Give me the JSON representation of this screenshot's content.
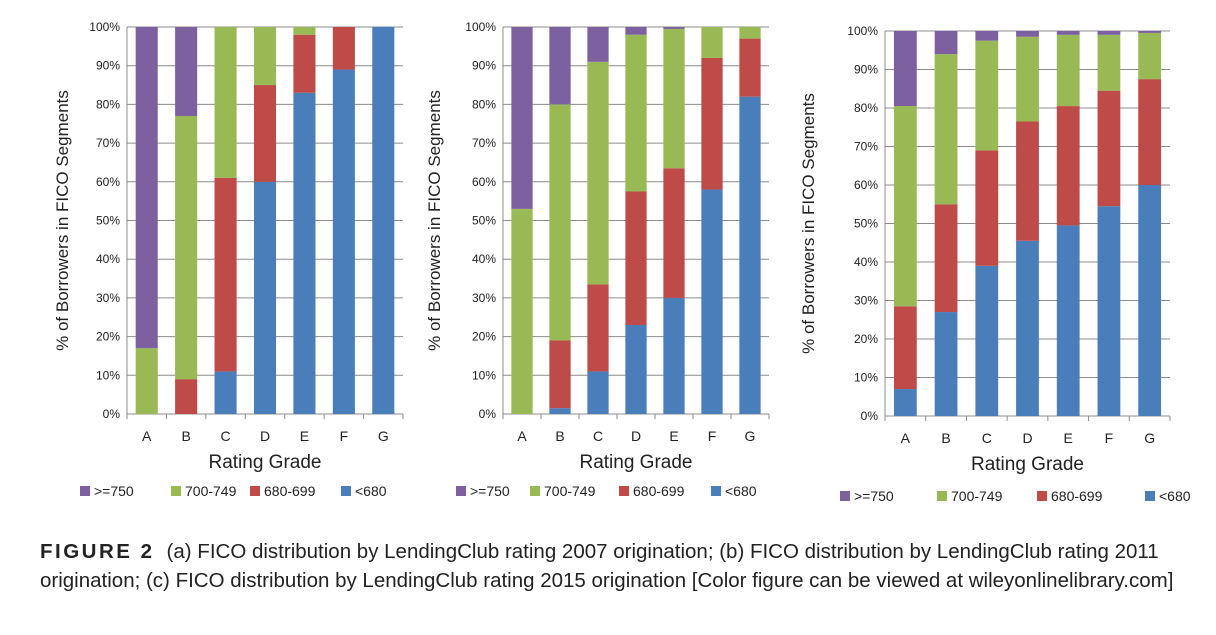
{
  "chart_data": [
    {
      "type": "bar",
      "stacked": true,
      "categories": [
        "A",
        "B",
        "C",
        "D",
        "E",
        "F",
        "G"
      ],
      "series": [
        {
          "name": "<680",
          "color": "#4a7ebb",
          "values": [
            0,
            0,
            11,
            60,
            83,
            89,
            100
          ]
        },
        {
          "name": "680-699",
          "color": "#be4b48",
          "values": [
            0,
            9,
            50,
            25,
            15,
            11,
            0
          ]
        },
        {
          "name": "700-749",
          "color": "#98b954",
          "values": [
            17,
            68,
            39,
            15,
            2,
            0,
            0
          ]
        },
        {
          "name": ">=750",
          "color": "#7d60a0",
          "values": [
            83,
            23,
            0,
            0,
            0,
            0,
            0
          ]
        }
      ],
      "xlabel": "Rating Grade",
      "ylabel": "% of Borrowers in FICO Segments",
      "ylim": [
        0,
        100
      ],
      "yticks": [
        "0%",
        "10%",
        "20%",
        "30%",
        "40%",
        "50%",
        "60%",
        "70%",
        "80%",
        "90%",
        "100%"
      ],
      "grid": true,
      "legend_position": "bottom"
    },
    {
      "type": "bar",
      "stacked": true,
      "categories": [
        "A",
        "B",
        "C",
        "D",
        "E",
        "F",
        "G"
      ],
      "series": [
        {
          "name": "<680",
          "color": "#4a7ebb",
          "values": [
            0,
            1.5,
            11,
            23,
            30,
            58,
            82
          ]
        },
        {
          "name": "680-699",
          "color": "#be4b48",
          "values": [
            0,
            17.5,
            22.5,
            34.5,
            33.5,
            34,
            15
          ]
        },
        {
          "name": "700-749",
          "color": "#98b954",
          "values": [
            53,
            61,
            57.5,
            40.5,
            36,
            8,
            3
          ]
        },
        {
          "name": ">=750",
          "color": "#7d60a0",
          "values": [
            47,
            20,
            9,
            2,
            0.5,
            0,
            0
          ]
        }
      ],
      "xlabel": "Rating Grade",
      "ylabel": "% of Borrowers in FICO Segments",
      "ylim": [
        0,
        100
      ],
      "yticks": [
        "0%",
        "10%",
        "20%",
        "30%",
        "40%",
        "50%",
        "60%",
        "70%",
        "80%",
        "90%",
        "100%"
      ],
      "grid": true,
      "legend_position": "bottom"
    },
    {
      "type": "bar",
      "stacked": true,
      "categories": [
        "A",
        "B",
        "C",
        "D",
        "E",
        "F",
        "G"
      ],
      "series": [
        {
          "name": "<680",
          "color": "#4a7ebb",
          "values": [
            7,
            27,
            39,
            45.5,
            49.5,
            54.5,
            60
          ]
        },
        {
          "name": "680-699",
          "color": "#be4b48",
          "values": [
            21.5,
            28,
            30,
            31,
            31,
            30,
            27.5
          ]
        },
        {
          "name": "700-749",
          "color": "#98b954",
          "values": [
            52,
            39,
            28.5,
            22,
            18.5,
            14.5,
            12
          ]
        },
        {
          "name": ">=750",
          "color": "#7d60a0",
          "values": [
            19.5,
            6,
            2.5,
            1.5,
            1,
            1,
            0.5
          ]
        }
      ],
      "xlabel": "Rating Grade",
      "ylabel": "% of Borrowers in FICO Segments",
      "ylim": [
        0,
        100
      ],
      "yticks": [
        "0%",
        "10%",
        "20%",
        "30%",
        "40%",
        "50%",
        "60%",
        "70%",
        "80%",
        "90%",
        "100%"
      ],
      "grid": true,
      "legend_position": "bottom"
    }
  ],
  "legend_order": [
    ">=750",
    "700-749",
    "680-699",
    "<680"
  ],
  "caption": {
    "label": "FIGURE 2",
    "text": "(a) FICO distribution by LendingClub rating 2007 origination; (b) FICO distribution by LendingClub rating 2011 origination; (c) FICO distribution by LendingClub rating 2015 origination [Color figure can be viewed at wileyonlinelibrary.com]"
  }
}
